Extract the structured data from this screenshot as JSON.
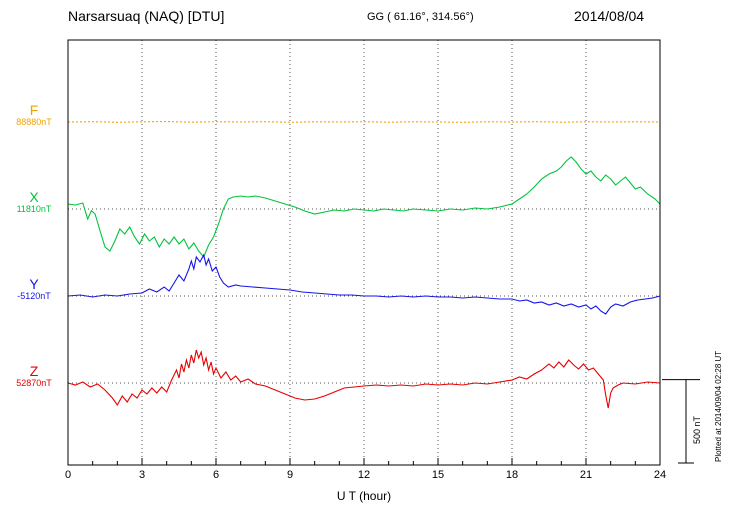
{
  "header": {
    "station": "Narsarsuaq (NAQ)  [DTU]",
    "coords": "GG ( 61.16°, 314.56°)",
    "date": "2014/08/04"
  },
  "footer_note": "Plotted at 2014/09/04 02:28 UT",
  "chart_data": {
    "type": "line",
    "title": "Narsarsuaq (NAQ)  [DTU]",
    "xlabel": "U T (hour)",
    "x_range": [
      0,
      24
    ],
    "x_ticks": [
      0,
      3,
      6,
      9,
      12,
      15,
      18,
      21,
      24
    ],
    "grid": "dotted-vertical-every-3h-and-horizontal-baselines",
    "scale_bar": {
      "label": "500 nT",
      "nT": 500
    },
    "series": [
      {
        "name": "F",
        "label": "F",
        "baseline_label": "88880nT",
        "baseline_nT": 88880,
        "color": "#EFA400",
        "style": "dotted",
        "points": [
          [
            0,
            0
          ],
          [
            1,
            2
          ],
          [
            2,
            -2
          ],
          [
            3,
            1
          ],
          [
            4,
            3
          ],
          [
            5,
            -1
          ],
          [
            6,
            2
          ],
          [
            7,
            0
          ],
          [
            8,
            2
          ],
          [
            9,
            -2
          ],
          [
            10,
            1
          ],
          [
            11,
            0
          ],
          [
            12,
            2
          ],
          [
            13,
            -1
          ],
          [
            14,
            1
          ],
          [
            15,
            0
          ],
          [
            16,
            -2
          ],
          [
            17,
            1
          ],
          [
            18,
            0
          ],
          [
            19,
            2
          ],
          [
            20,
            -1
          ],
          [
            21,
            1
          ],
          [
            22,
            0
          ],
          [
            23,
            1
          ],
          [
            24,
            0
          ]
        ]
      },
      {
        "name": "X",
        "label": "X",
        "baseline_label": "11810nT",
        "baseline_nT": 11810,
        "color": "#00C43C",
        "style": "solid",
        "points": [
          [
            0,
            30
          ],
          [
            0.3,
            24
          ],
          [
            0.6,
            36
          ],
          [
            0.8,
            -60
          ],
          [
            0.95,
            -10
          ],
          [
            1.1,
            -30
          ],
          [
            1.3,
            -132
          ],
          [
            1.5,
            -228
          ],
          [
            1.7,
            -252
          ],
          [
            1.9,
            -192
          ],
          [
            2.1,
            -120
          ],
          [
            2.3,
            -150
          ],
          [
            2.5,
            -108
          ],
          [
            2.7,
            -168
          ],
          [
            2.9,
            -210
          ],
          [
            3.1,
            -150
          ],
          [
            3.3,
            -192
          ],
          [
            3.5,
            -168
          ],
          [
            3.7,
            -228
          ],
          [
            3.9,
            -180
          ],
          [
            4.1,
            -210
          ],
          [
            4.3,
            -168
          ],
          [
            4.5,
            -210
          ],
          [
            4.7,
            -180
          ],
          [
            4.9,
            -240
          ],
          [
            5.1,
            -204
          ],
          [
            5.3,
            -252
          ],
          [
            5.5,
            -288
          ],
          [
            5.7,
            -216
          ],
          [
            5.9,
            -168
          ],
          [
            6.1,
            -90
          ],
          [
            6.3,
            0
          ],
          [
            6.5,
            60
          ],
          [
            6.7,
            72
          ],
          [
            7.0,
            78
          ],
          [
            7.3,
            72
          ],
          [
            7.6,
            78
          ],
          [
            8.0,
            66
          ],
          [
            8.4,
            48
          ],
          [
            8.8,
            30
          ],
          [
            9.2,
            12
          ],
          [
            9.6,
            -12
          ],
          [
            10.0,
            -30
          ],
          [
            10.4,
            -18
          ],
          [
            10.8,
            -6
          ],
          [
            11.2,
            -12
          ],
          [
            11.6,
            0
          ],
          [
            12.0,
            -6
          ],
          [
            12.4,
            -12
          ],
          [
            12.8,
            0
          ],
          [
            13.2,
            -6
          ],
          [
            13.6,
            -12
          ],
          [
            14.0,
            0
          ],
          [
            14.5,
            -6
          ],
          [
            15.0,
            -12
          ],
          [
            15.5,
            0
          ],
          [
            16.0,
            -6
          ],
          [
            16.5,
            6
          ],
          [
            17.0,
            0
          ],
          [
            17.5,
            12
          ],
          [
            18.0,
            30
          ],
          [
            18.3,
            60
          ],
          [
            18.6,
            90
          ],
          [
            18.9,
            132
          ],
          [
            19.2,
            180
          ],
          [
            19.5,
            210
          ],
          [
            19.8,
            228
          ],
          [
            20.0,
            252
          ],
          [
            20.2,
            288
          ],
          [
            20.4,
            312
          ],
          [
            20.6,
            282
          ],
          [
            20.8,
            240
          ],
          [
            21.0,
            210
          ],
          [
            21.2,
            228
          ],
          [
            21.4,
            192
          ],
          [
            21.6,
            168
          ],
          [
            21.8,
            204
          ],
          [
            22.0,
            180
          ],
          [
            22.2,
            144
          ],
          [
            22.4,
            168
          ],
          [
            22.6,
            192
          ],
          [
            22.8,
            156
          ],
          [
            23.0,
            120
          ],
          [
            23.2,
            132
          ],
          [
            23.5,
            90
          ],
          [
            23.8,
            60
          ],
          [
            24.0,
            30
          ]
        ]
      },
      {
        "name": "Y",
        "label": "Y",
        "baseline_label": "-5120nT",
        "baseline_nT": -5120,
        "color": "#1515E8",
        "style": "solid",
        "points": [
          [
            0,
            0
          ],
          [
            0.5,
            6
          ],
          [
            1.0,
            -6
          ],
          [
            1.5,
            6
          ],
          [
            2.0,
            0
          ],
          [
            2.5,
            12
          ],
          [
            3.0,
            18
          ],
          [
            3.3,
            42
          ],
          [
            3.6,
            24
          ],
          [
            3.9,
            54
          ],
          [
            4.1,
            30
          ],
          [
            4.3,
            78
          ],
          [
            4.5,
            126
          ],
          [
            4.7,
            90
          ],
          [
            4.9,
            162
          ],
          [
            5.0,
            210
          ],
          [
            5.1,
            162
          ],
          [
            5.2,
            234
          ],
          [
            5.35,
            204
          ],
          [
            5.5,
            246
          ],
          [
            5.6,
            186
          ],
          [
            5.7,
            222
          ],
          [
            5.85,
            150
          ],
          [
            6.0,
            174
          ],
          [
            6.15,
            114
          ],
          [
            6.3,
            78
          ],
          [
            6.5,
            54
          ],
          [
            6.8,
            66
          ],
          [
            7.0,
            60
          ],
          [
            7.5,
            54
          ],
          [
            8.0,
            48
          ],
          [
            8.5,
            42
          ],
          [
            9.0,
            36
          ],
          [
            9.5,
            24
          ],
          [
            10.0,
            18
          ],
          [
            10.5,
            12
          ],
          [
            11.0,
            6
          ],
          [
            11.5,
            6
          ],
          [
            12.0,
            0
          ],
          [
            12.5,
            0
          ],
          [
            13.0,
            -6
          ],
          [
            13.5,
            0
          ],
          [
            14.0,
            -6
          ],
          [
            14.5,
            0
          ],
          [
            15.0,
            -6
          ],
          [
            15.5,
            -6
          ],
          [
            16.0,
            -12
          ],
          [
            16.5,
            -6
          ],
          [
            17.0,
            -12
          ],
          [
            17.5,
            -18
          ],
          [
            18.0,
            -18
          ],
          [
            18.3,
            -30
          ],
          [
            18.6,
            -24
          ],
          [
            18.9,
            -42
          ],
          [
            19.2,
            -36
          ],
          [
            19.5,
            -54
          ],
          [
            19.8,
            -42
          ],
          [
            20.1,
            -60
          ],
          [
            20.4,
            -48
          ],
          [
            20.7,
            -66
          ],
          [
            21.0,
            -54
          ],
          [
            21.2,
            -78
          ],
          [
            21.4,
            -60
          ],
          [
            21.6,
            -90
          ],
          [
            21.8,
            -108
          ],
          [
            22.0,
            -66
          ],
          [
            22.2,
            -48
          ],
          [
            22.5,
            -60
          ],
          [
            22.8,
            -36
          ],
          [
            23.1,
            -24
          ],
          [
            23.4,
            -18
          ],
          [
            23.7,
            -12
          ],
          [
            24.0,
            0
          ]
        ]
      },
      {
        "name": "Z",
        "label": "Z",
        "baseline_label": "52870nT",
        "baseline_nT": 52870,
        "color": "#E80000",
        "style": "solid",
        "points": [
          [
            0,
            0
          ],
          [
            0.3,
            -12
          ],
          [
            0.6,
            6
          ],
          [
            0.9,
            -24
          ],
          [
            1.2,
            -6
          ],
          [
            1.5,
            -42
          ],
          [
            1.8,
            -90
          ],
          [
            2.0,
            -132
          ],
          [
            2.2,
            -78
          ],
          [
            2.4,
            -114
          ],
          [
            2.6,
            -66
          ],
          [
            2.8,
            -90
          ],
          [
            3.0,
            -42
          ],
          [
            3.2,
            -66
          ],
          [
            3.4,
            -30
          ],
          [
            3.6,
            -60
          ],
          [
            3.8,
            -24
          ],
          [
            4.0,
            -54
          ],
          [
            4.2,
            18
          ],
          [
            4.4,
            78
          ],
          [
            4.5,
            30
          ],
          [
            4.6,
            114
          ],
          [
            4.7,
            66
          ],
          [
            4.8,
            138
          ],
          [
            4.9,
            90
          ],
          [
            5.0,
            168
          ],
          [
            5.1,
            120
          ],
          [
            5.2,
            198
          ],
          [
            5.3,
            150
          ],
          [
            5.4,
            186
          ],
          [
            5.5,
            108
          ],
          [
            5.6,
            150
          ],
          [
            5.7,
            78
          ],
          [
            5.8,
            126
          ],
          [
            5.9,
            54
          ],
          [
            6.0,
            90
          ],
          [
            6.2,
            30
          ],
          [
            6.4,
            66
          ],
          [
            6.6,
            18
          ],
          [
            6.8,
            42
          ],
          [
            7.0,
            6
          ],
          [
            7.3,
            24
          ],
          [
            7.6,
            -6
          ],
          [
            8.0,
            -18
          ],
          [
            8.4,
            -42
          ],
          [
            8.8,
            -66
          ],
          [
            9.2,
            -90
          ],
          [
            9.6,
            -102
          ],
          [
            10.0,
            -96
          ],
          [
            10.4,
            -78
          ],
          [
            10.8,
            -54
          ],
          [
            11.2,
            -30
          ],
          [
            11.6,
            -24
          ],
          [
            12.0,
            -18
          ],
          [
            12.5,
            -12
          ],
          [
            13.0,
            -18
          ],
          [
            13.5,
            -12
          ],
          [
            14.0,
            -18
          ],
          [
            14.5,
            -6
          ],
          [
            15.0,
            -12
          ],
          [
            15.5,
            -6
          ],
          [
            16.0,
            -12
          ],
          [
            16.5,
            0
          ],
          [
            17.0,
            -6
          ],
          [
            17.5,
            6
          ],
          [
            18.0,
            18
          ],
          [
            18.3,
            36
          ],
          [
            18.6,
            24
          ],
          [
            18.9,
            54
          ],
          [
            19.2,
            78
          ],
          [
            19.5,
            114
          ],
          [
            19.7,
            90
          ],
          [
            19.9,
            126
          ],
          [
            20.1,
            96
          ],
          [
            20.3,
            138
          ],
          [
            20.5,
            108
          ],
          [
            20.7,
            84
          ],
          [
            20.9,
            114
          ],
          [
            21.1,
            78
          ],
          [
            21.3,
            90
          ],
          [
            21.5,
            54
          ],
          [
            21.7,
            18
          ],
          [
            21.8,
            -72
          ],
          [
            21.9,
            -150
          ],
          [
            22.0,
            -60
          ],
          [
            22.1,
            -30
          ],
          [
            22.3,
            -12
          ],
          [
            22.5,
            0
          ],
          [
            23.0,
            -6
          ],
          [
            23.5,
            6
          ],
          [
            24.0,
            0
          ]
        ]
      }
    ]
  }
}
